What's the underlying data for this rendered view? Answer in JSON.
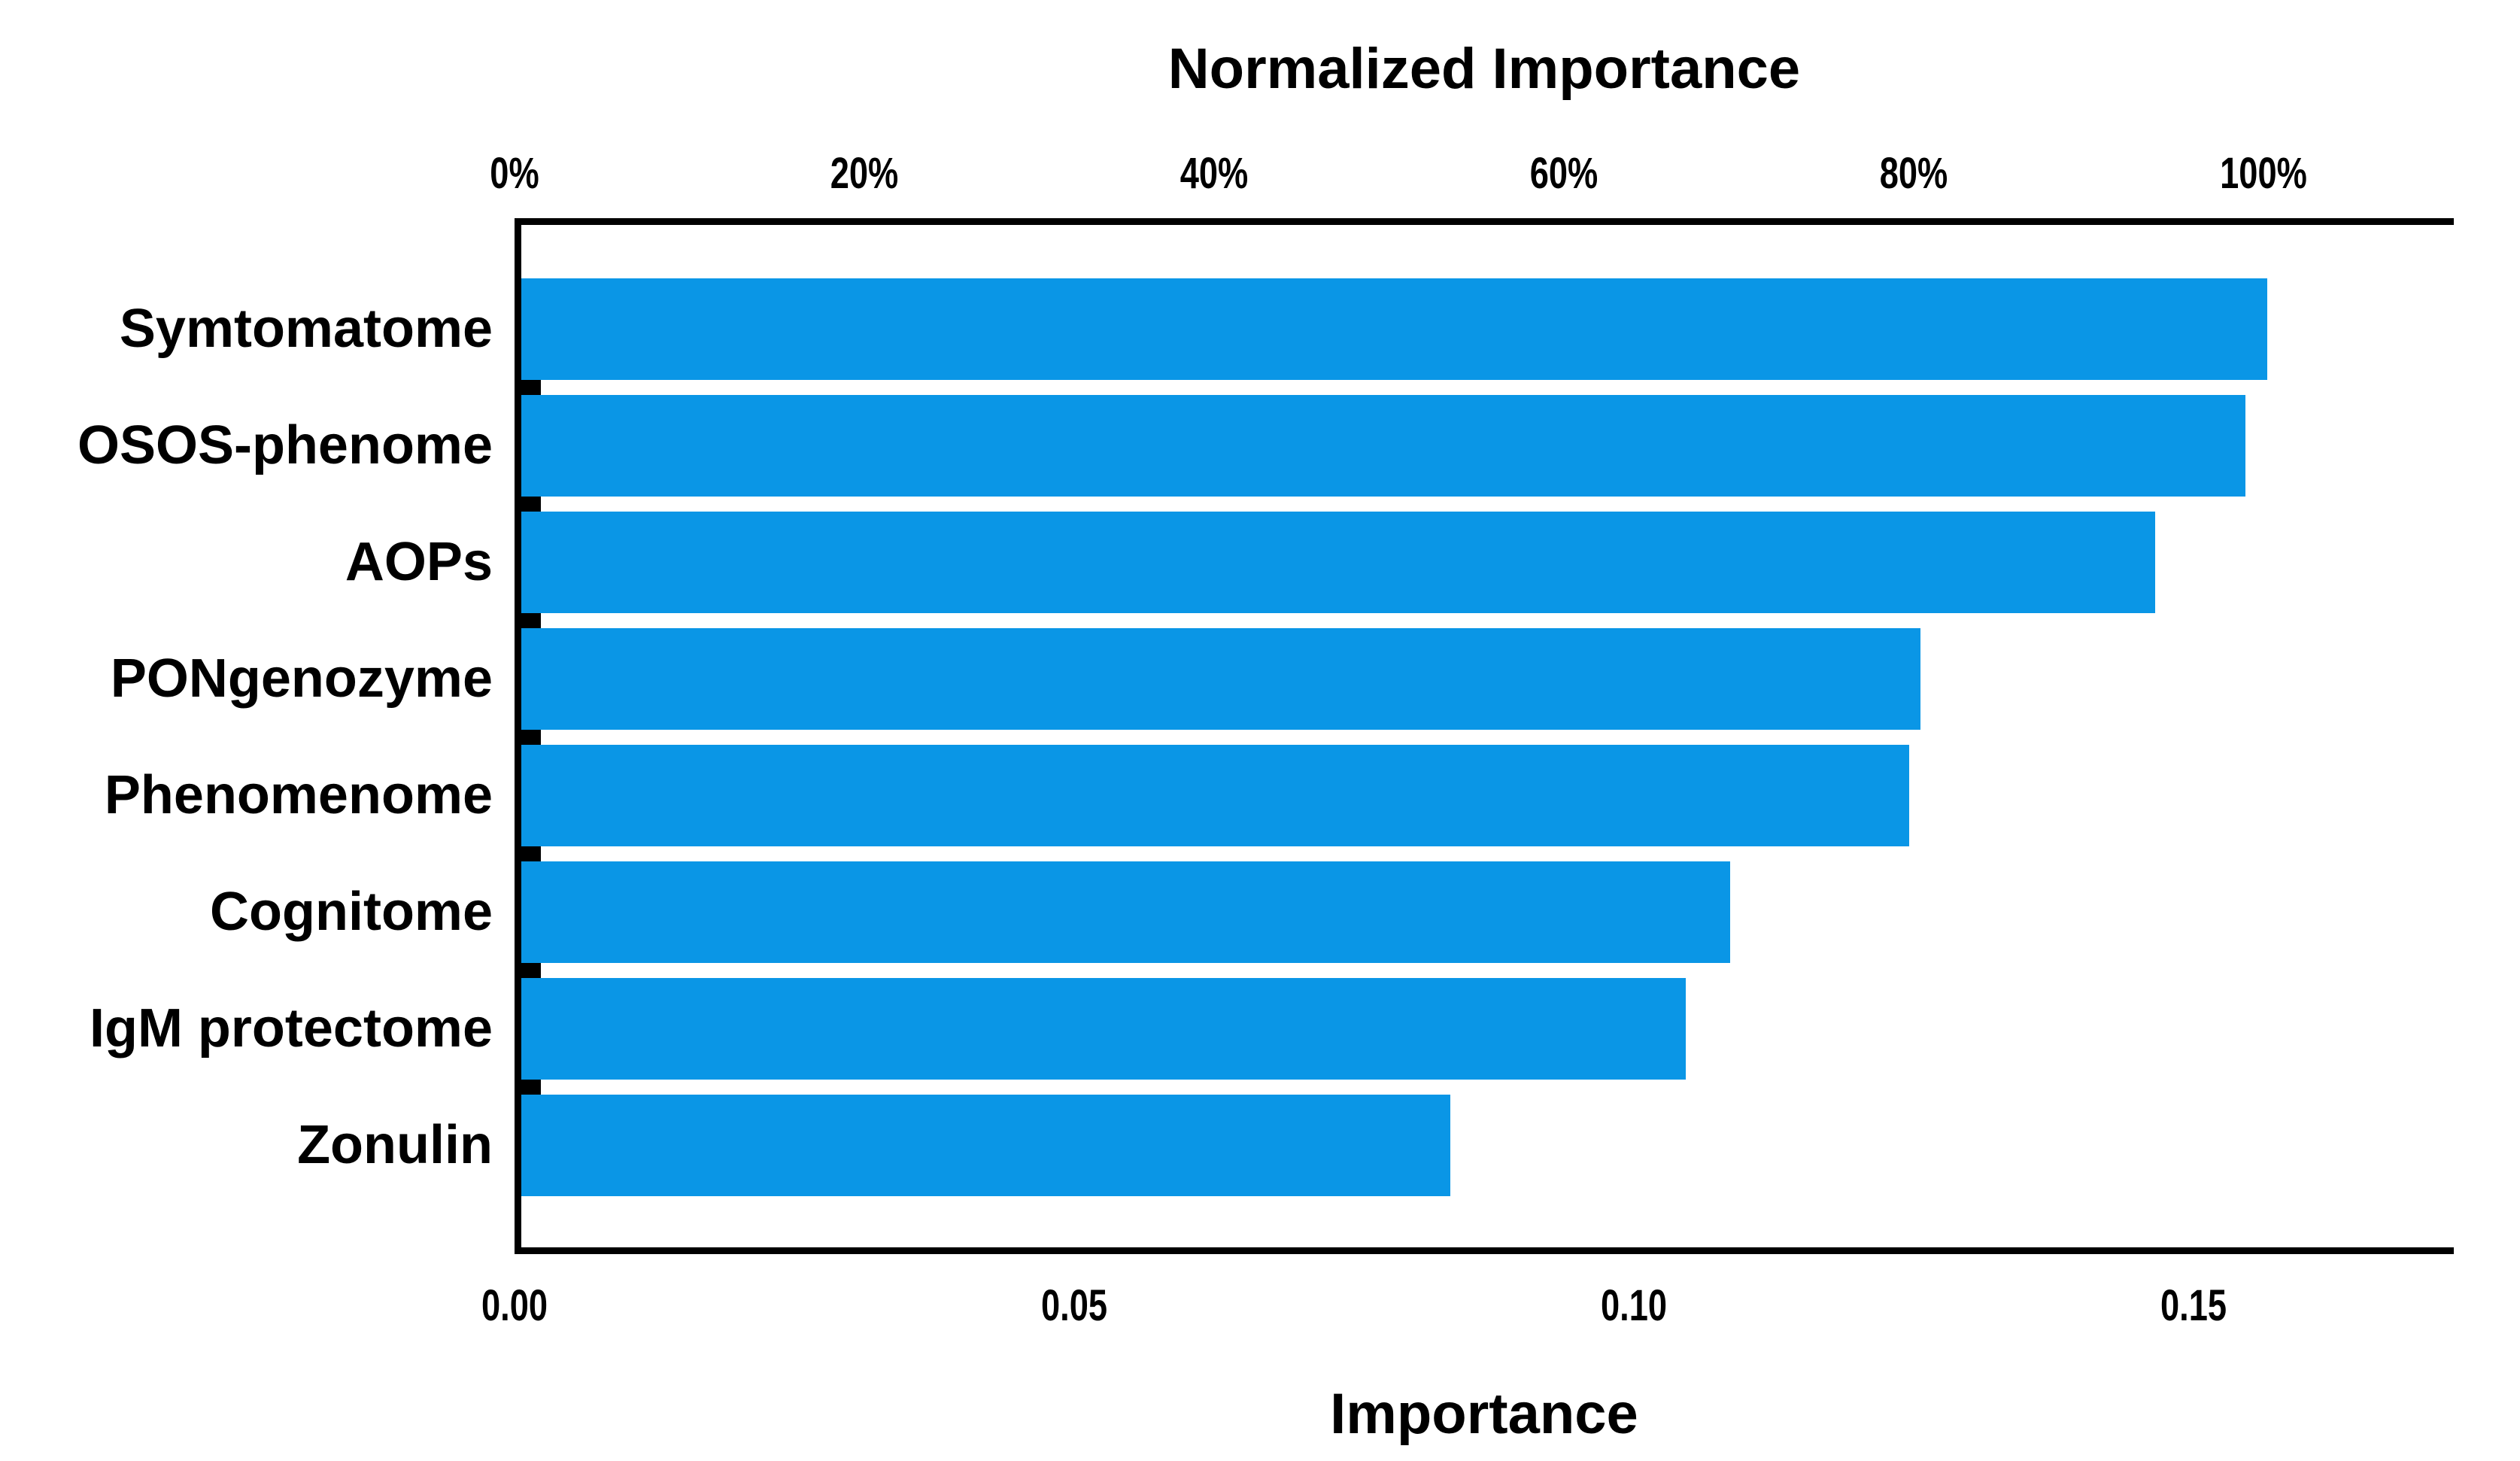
{
  "page": {
    "background": "#FFFFFF"
  },
  "chart_data": {
    "type": "bar",
    "orientation": "horizontal",
    "categories": [
      "Symtomatome",
      "OSOS-phenome",
      "AOPs",
      "PONgenozyme",
      "Phenomenome",
      "Cognitome",
      "IgM protectome",
      "Zonulin"
    ],
    "series": [
      {
        "name": "Importance",
        "values": [
          0.156,
          0.154,
          0.146,
          0.125,
          0.124,
          0.108,
          0.104,
          0.083
        ]
      }
    ],
    "normalized_importance_percent": [
      100,
      98.7,
      93.6,
      80.1,
      79.5,
      69.2,
      66.7,
      53.2
    ],
    "top_axis": {
      "label": "Normalized Importance",
      "tick_labels": [
        "0%",
        "20%",
        "40%",
        "60%",
        "80%",
        "100%"
      ],
      "tick_values": [
        0,
        20,
        40,
        60,
        80,
        100
      ],
      "range": [
        0,
        110.9
      ]
    },
    "bottom_axis": {
      "label": "Importance",
      "tick_labels": [
        "0.00",
        "0.05",
        "0.10",
        "0.15"
      ],
      "tick_values": [
        0,
        0.05,
        0.1,
        0.15
      ],
      "range": [
        0,
        0.173
      ]
    },
    "bar_color": "#0A96E6",
    "axis_line_color": "#000000",
    "text_color": "#000000",
    "grid": false,
    "legend": false
  }
}
